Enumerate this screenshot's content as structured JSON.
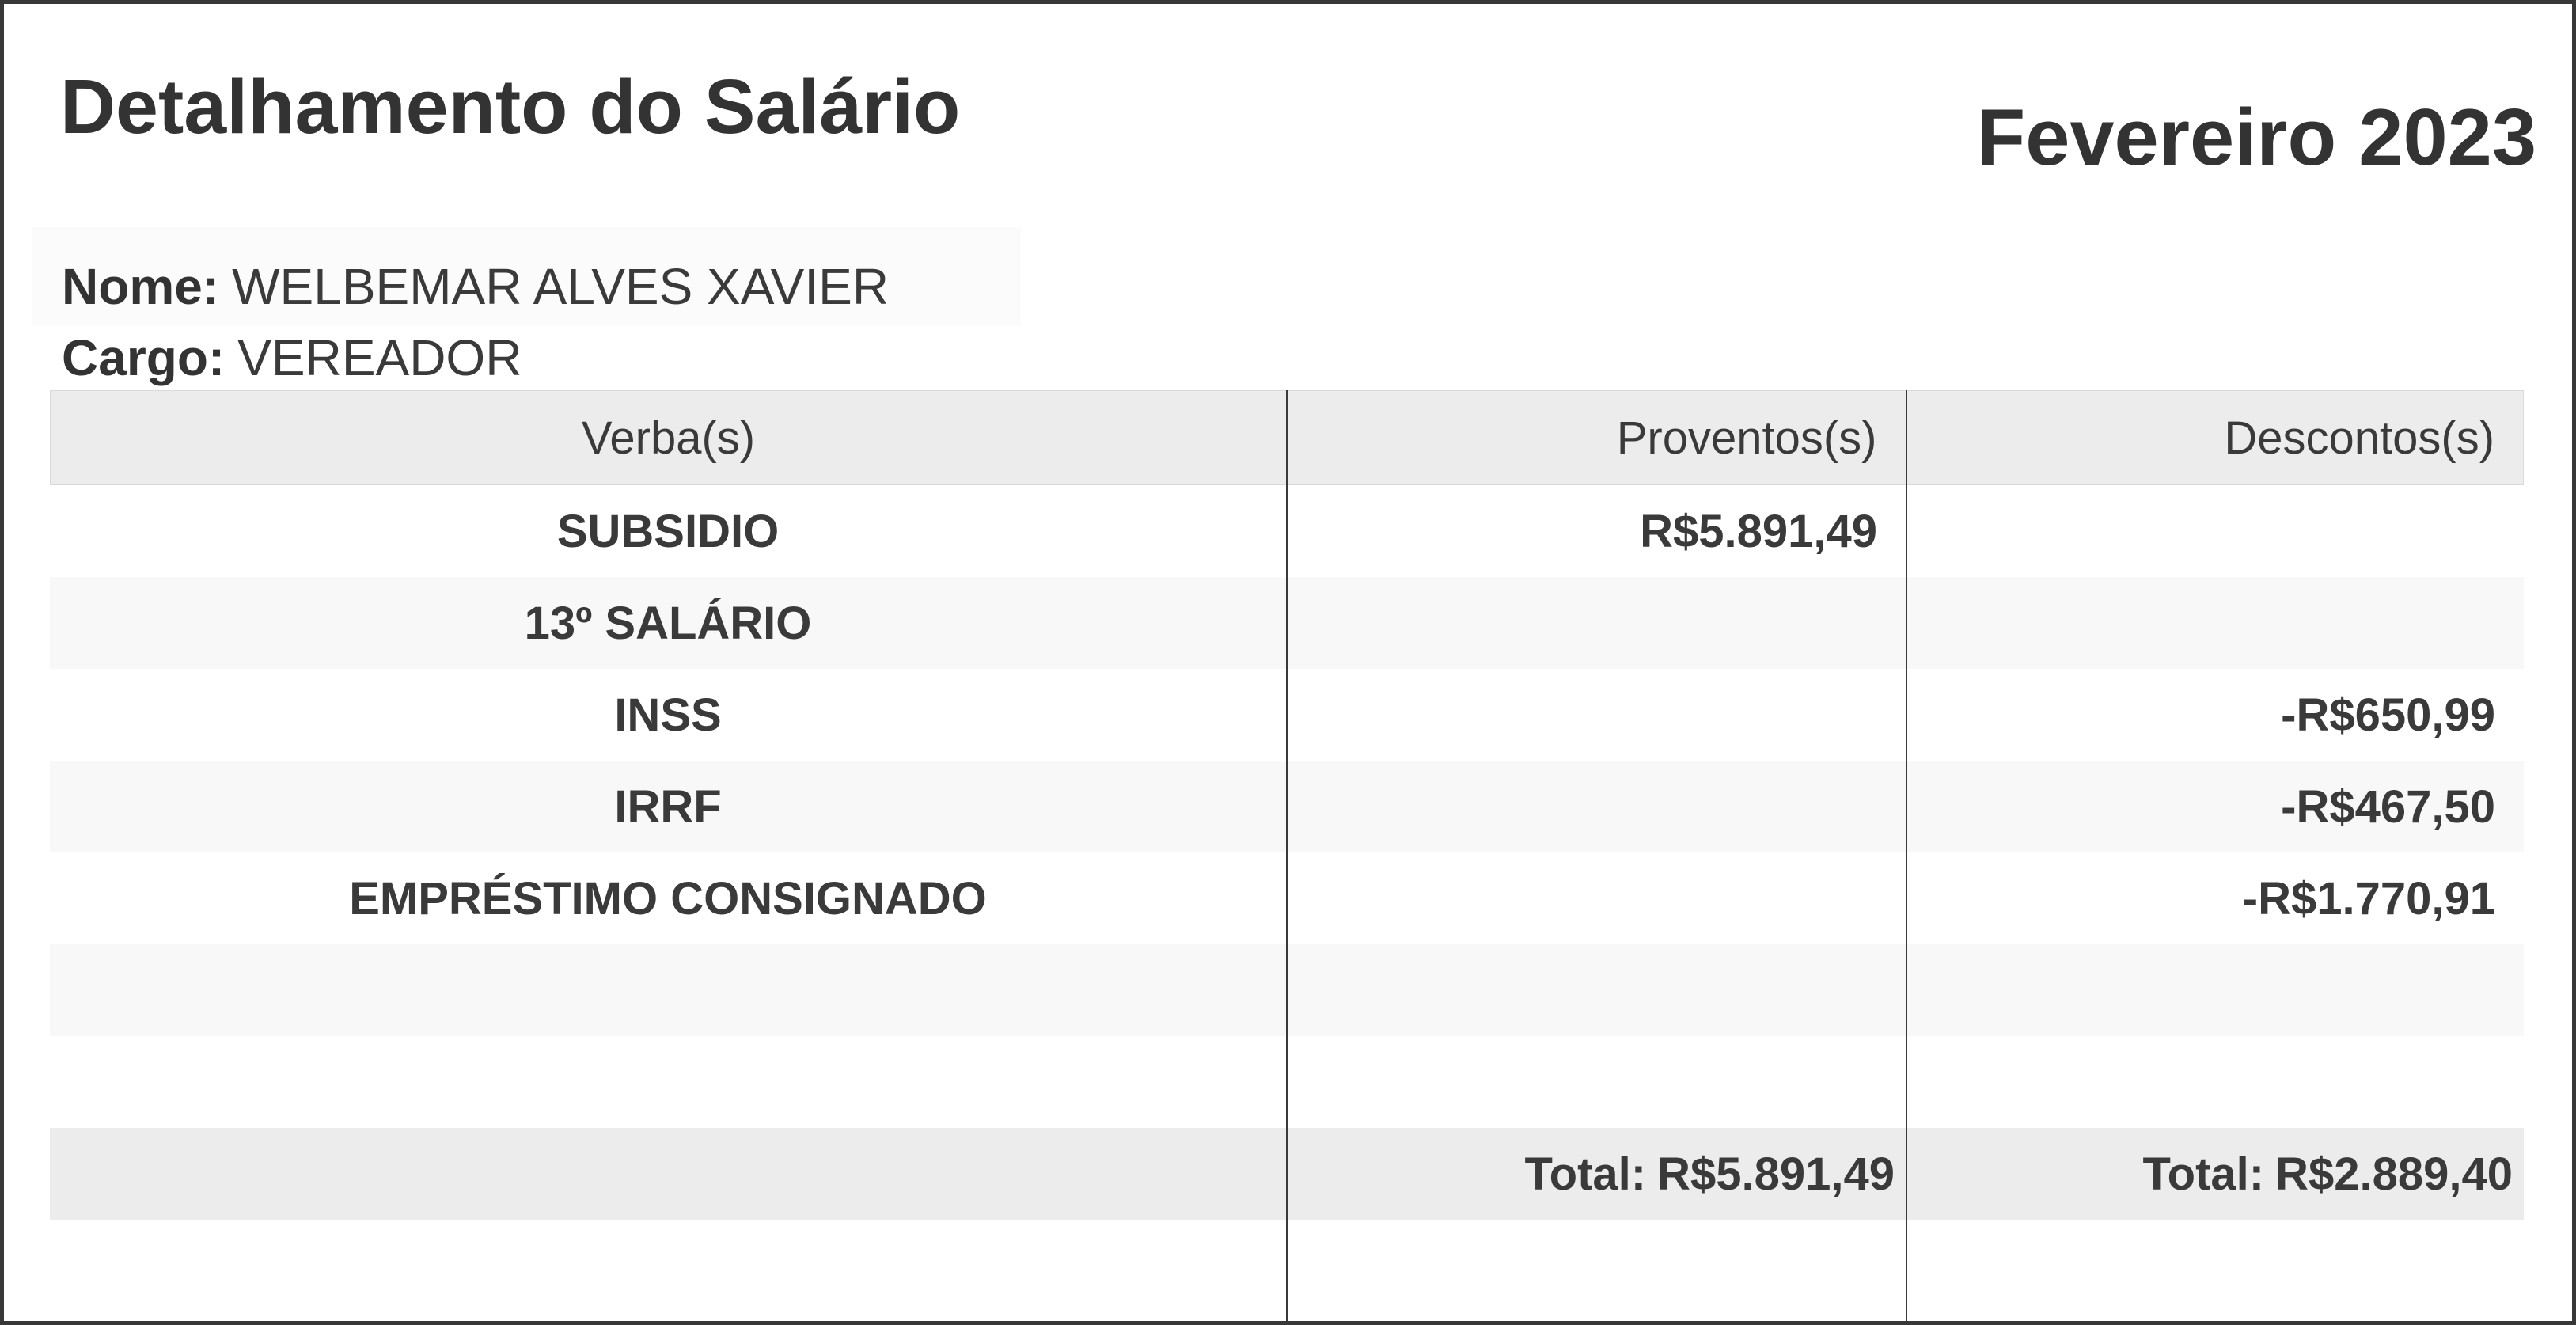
{
  "page": {
    "title": "Detalhamento do Salário",
    "period": "Fevereiro 2023"
  },
  "employee": {
    "name_label": "Nome:",
    "name": "WELBEMAR ALVES XAVIER",
    "role_label": "Cargo:",
    "role": "VEREADOR"
  },
  "table": {
    "columns": {
      "verba": "Verba(s)",
      "proventos": "Proventos(s)",
      "descontos": "Descontos(s)"
    },
    "rows": [
      {
        "verba": "SUBSIDIO",
        "provento": "R$5.891,49",
        "desconto": ""
      },
      {
        "verba": "13º SALÁRIO",
        "provento": "",
        "desconto": ""
      },
      {
        "verba": "INSS",
        "provento": "",
        "desconto": "-R$650,99"
      },
      {
        "verba": "IRRF",
        "provento": "",
        "desconto": "-R$467,50"
      },
      {
        "verba": "EMPRÉSTIMO CONSIGNADO",
        "provento": "",
        "desconto": "-R$1.770,91"
      },
      {
        "verba": "",
        "provento": "",
        "desconto": ""
      },
      {
        "verba": "",
        "provento": "",
        "desconto": ""
      }
    ],
    "totals": {
      "label": "Total:",
      "proventos": "R$5.891,49",
      "descontos": "R$2.889,40"
    }
  },
  "colors": {
    "text": "#333333",
    "page_border": "#383838",
    "column_divider": "#3a3a3a",
    "header_row_bg": "#ececec",
    "stripe_row_bg": "#f8f8f8",
    "total_row_bg": "#ececec"
  }
}
